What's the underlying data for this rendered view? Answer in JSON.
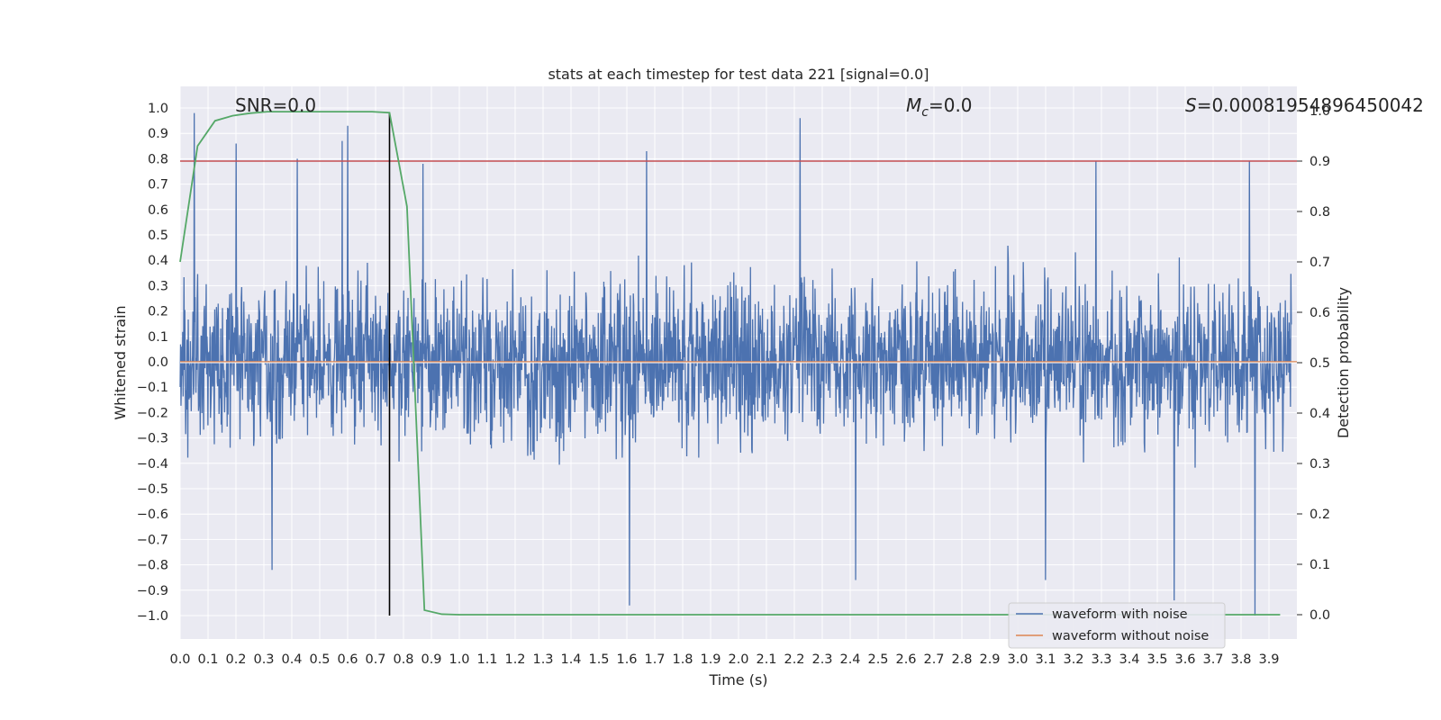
{
  "chart_data": {
    "type": "line",
    "title": "stats at each timestep for test data 221 [signal=0.0]",
    "xlabel": "Time (s)",
    "ylabel_left": "Whitened strain",
    "ylabel_right": "Detection probability",
    "xlim": [
      0.0,
      4.0
    ],
    "ylim_left": [
      -1.1,
      1.1
    ],
    "ylim_right": [
      -0.05,
      1.05
    ],
    "xticks": [
      "0.0",
      "0.1",
      "0.2",
      "0.3",
      "0.4",
      "0.5",
      "0.6",
      "0.7",
      "0.8",
      "0.9",
      "1.0",
      "1.1",
      "1.2",
      "1.3",
      "1.4",
      "1.5",
      "1.6",
      "1.7",
      "1.8",
      "1.9",
      "2.0",
      "2.1",
      "2.2",
      "2.3",
      "2.4",
      "2.5",
      "2.6",
      "2.7",
      "2.8",
      "2.9",
      "3.0",
      "3.1",
      "3.2",
      "3.3",
      "3.4",
      "3.5",
      "3.6",
      "3.7",
      "3.8",
      "3.9"
    ],
    "yticks_left": [
      "1.0",
      "0.9",
      "0.8",
      "0.7",
      "0.6",
      "0.5",
      "0.4",
      "0.3",
      "0.2",
      "0.1",
      "0.0",
      "−0.1",
      "−0.2",
      "−0.3",
      "−0.4",
      "−0.5",
      "−0.6",
      "−0.7",
      "−0.8",
      "−0.9",
      "−1.0"
    ],
    "yticks_right": [
      "1.0",
      "0.9",
      "0.8",
      "0.7",
      "0.6",
      "0.5",
      "0.4",
      "0.3",
      "0.2",
      "0.1",
      "0.0"
    ],
    "grid": true,
    "legend_position": "bottom-right",
    "annotations": {
      "snr": "SNR=0.0",
      "mc_symbol": "M",
      "mc_subscript": "c",
      "mc_value": "=0.0",
      "s_symbol": "S",
      "s_value": "=0.00081954896450042"
    },
    "series": [
      {
        "name": "waveform with noise",
        "axis": "left",
        "color": "#4c72b0",
        "description_range": [
          -1.0,
          0.98
        ],
        "peaks": [
          {
            "x": 0.05,
            "y": 0.98
          },
          {
            "x": 0.2,
            "y": 0.86
          },
          {
            "x": 0.42,
            "y": 0.8
          },
          {
            "x": 0.58,
            "y": 0.87
          },
          {
            "x": 0.6,
            "y": 0.93
          },
          {
            "x": 0.87,
            "y": 0.78
          },
          {
            "x": 2.22,
            "y": 0.96
          },
          {
            "x": 1.67,
            "y": 0.83
          },
          {
            "x": 3.28,
            "y": 0.79
          },
          {
            "x": 3.83,
            "y": 0.79
          },
          {
            "x": 0.33,
            "y": -0.82
          },
          {
            "x": 1.61,
            "y": -0.96
          },
          {
            "x": 2.42,
            "y": -0.86
          },
          {
            "x": 3.1,
            "y": -0.86
          },
          {
            "x": 3.56,
            "y": -0.94
          },
          {
            "x": 3.85,
            "y": -1.0
          }
        ]
      },
      {
        "name": "waveform without noise",
        "axis": "left",
        "color": "#dd8452",
        "x": [
          0.0,
          4.0
        ],
        "y": [
          0.0,
          0.0
        ]
      },
      {
        "name": "",
        "axis": "right",
        "color": "#55a868",
        "x": [
          0.0,
          0.0625,
          0.125,
          0.1875,
          0.25,
          0.3125,
          0.375,
          0.4375,
          0.5,
          0.5625,
          0.625,
          0.6875,
          0.75,
          0.8125,
          0.875,
          0.9375,
          1.0,
          1.5,
          2.0,
          2.5,
          3.0,
          3.5,
          3.94
        ],
        "y": [
          0.7,
          0.93,
          0.98,
          0.99,
          0.995,
          0.998,
          0.998,
          0.998,
          0.998,
          0.998,
          0.998,
          0.998,
          0.996,
          0.81,
          0.009,
          0.001,
          0.0,
          0.0,
          0.0,
          0.0,
          0.0,
          0.0,
          0.0
        ]
      }
    ],
    "threshold_line": {
      "axis": "right",
      "y": 0.9,
      "color": "#c44e52"
    },
    "vertical_marker": {
      "x": 0.75,
      "y_from": -1.0,
      "y_to": 0.98,
      "color": "#000000"
    },
    "colors": {
      "background": "#eaeaf2",
      "grid": "#ffffff"
    }
  }
}
